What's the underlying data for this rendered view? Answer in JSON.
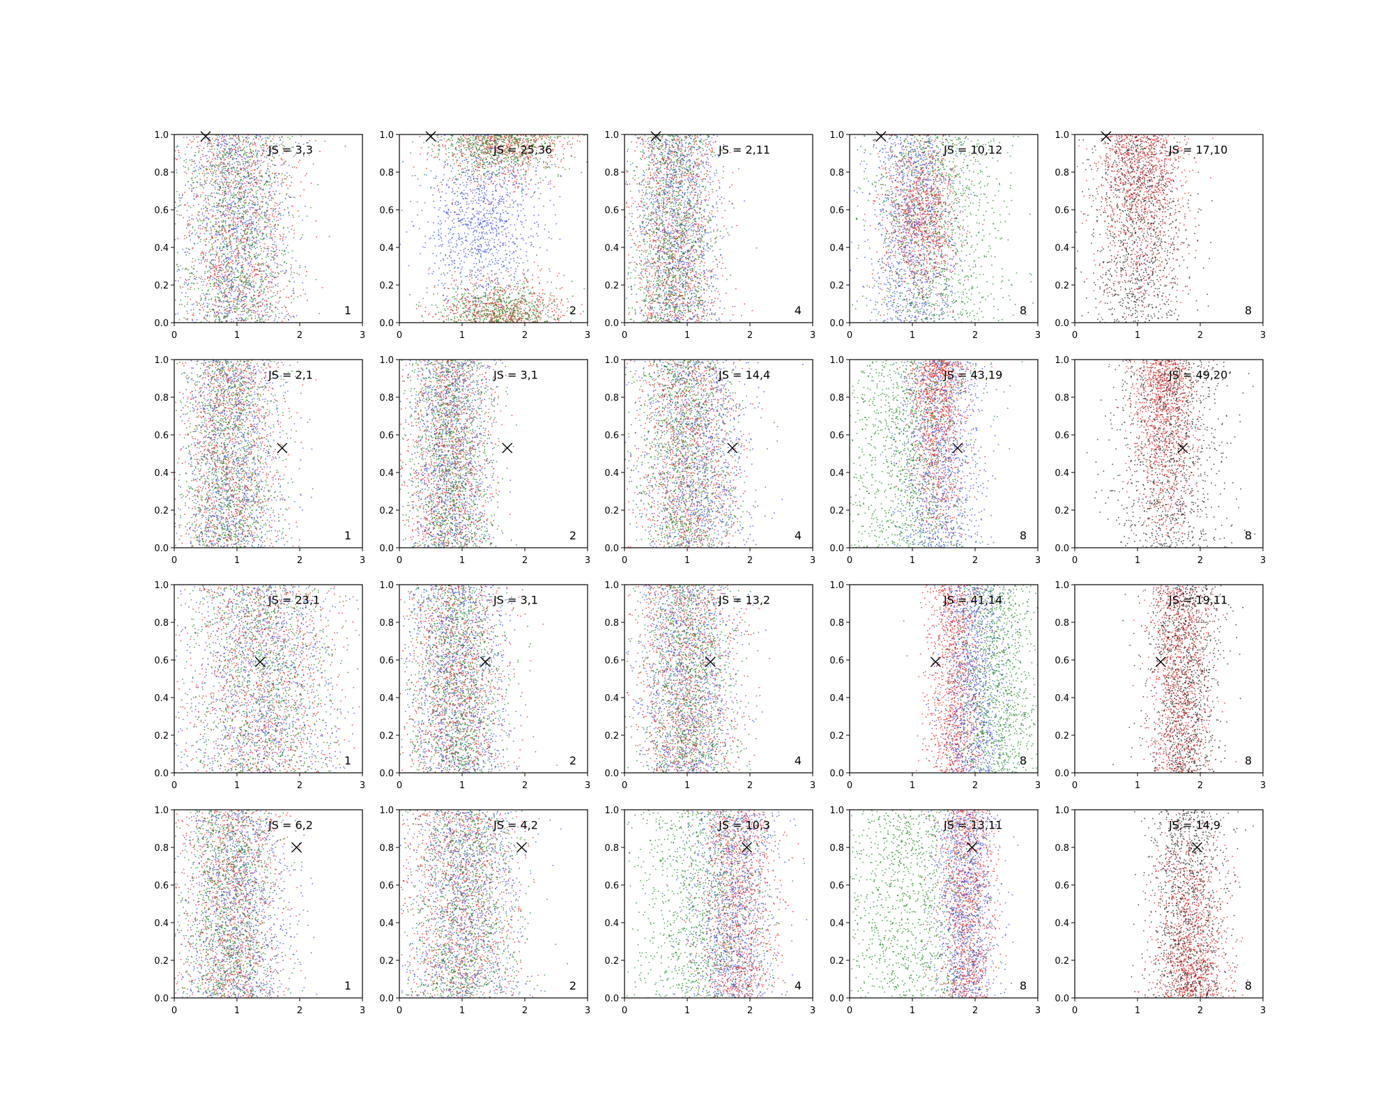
{
  "chart_data": {
    "type": "scatter",
    "layout": {
      "rows": 4,
      "cols": 5
    },
    "xlim": [
      0,
      3
    ],
    "ylim": [
      0,
      1
    ],
    "xticks": [
      "0",
      "1",
      "2",
      "3"
    ],
    "yticks": [
      "0.0",
      "0.2",
      "0.4",
      "0.6",
      "0.8",
      "1.0"
    ],
    "grid": false,
    "marker": {
      "symbol": "x",
      "color": "#000000"
    },
    "colors": {
      "red": "#e8231f",
      "blue": "#3a4fe0",
      "green": "#1f8a1f",
      "black": "#222222"
    },
    "panels": [
      {
        "label": "JS = 3,3",
        "count": "1",
        "marker": [
          0.5,
          0.99
        ],
        "clusters": [
          {
            "color": "red",
            "mx": 1.0,
            "sx": 0.45,
            "yMode": "uniform"
          },
          {
            "color": "blue",
            "mx": 1.0,
            "sx": 0.45,
            "yMode": "uniform"
          },
          {
            "color": "green",
            "mx": 1.0,
            "sx": 0.45,
            "yMode": "uniform"
          }
        ]
      },
      {
        "label": "JS = 25,36",
        "count": "2",
        "marker": [
          0.5,
          0.99
        ],
        "clusters": [
          {
            "color": "red",
            "mx": 1.6,
            "sx": 0.5,
            "yMode": "ends"
          },
          {
            "color": "blue",
            "mx": 1.3,
            "sx": 0.45,
            "yMode": "mid"
          },
          {
            "color": "green",
            "mx": 1.6,
            "sx": 0.5,
            "yMode": "ends"
          }
        ]
      },
      {
        "label": "JS = 2,11",
        "count": "4",
        "marker": [
          0.5,
          0.99
        ],
        "clusters": [
          {
            "color": "red",
            "mx": 0.8,
            "sx": 0.35,
            "yMode": "uniform"
          },
          {
            "color": "blue",
            "mx": 0.85,
            "sx": 0.35,
            "yMode": "uniform"
          },
          {
            "color": "green",
            "mx": 0.75,
            "sx": 0.35,
            "yMode": "uniform"
          }
        ]
      },
      {
        "label": "JS = 10,12",
        "count": "8",
        "marker": [
          0.5,
          0.99
        ],
        "clusters": [
          {
            "color": "red",
            "mx": 1.1,
            "sx": 0.3,
            "yMode": "mid"
          },
          {
            "color": "blue",
            "mx": 1.0,
            "sx": 0.35,
            "yMode": "uniform"
          },
          {
            "color": "green",
            "mx": 1.4,
            "sx": 0.55,
            "yMode": "uniform"
          }
        ]
      },
      {
        "label": "JS = 17,10",
        "count": "8",
        "marker": [
          0.5,
          0.99
        ],
        "clusters": [
          {
            "color": "red",
            "mx": 1.05,
            "sx": 0.35,
            "yMode": "top"
          },
          {
            "color": "black",
            "mx": 1.0,
            "sx": 0.4,
            "yMode": "uniform"
          }
        ]
      },
      {
        "label": "JS = 2,1",
        "count": "1",
        "marker": [
          1.72,
          0.53
        ],
        "clusters": [
          {
            "color": "red",
            "mx": 0.9,
            "sx": 0.4,
            "yMode": "uniform"
          },
          {
            "color": "blue",
            "mx": 0.9,
            "sx": 0.4,
            "yMode": "uniform"
          },
          {
            "color": "green",
            "mx": 0.9,
            "sx": 0.4,
            "yMode": "uniform"
          }
        ]
      },
      {
        "label": "JS = 3,1",
        "count": "2",
        "marker": [
          1.72,
          0.53
        ],
        "clusters": [
          {
            "color": "red",
            "mx": 0.8,
            "sx": 0.35,
            "yMode": "uniform"
          },
          {
            "color": "blue",
            "mx": 0.8,
            "sx": 0.35,
            "yMode": "uniform"
          },
          {
            "color": "green",
            "mx": 0.8,
            "sx": 0.35,
            "yMode": "uniform"
          }
        ]
      },
      {
        "label": "JS = 14,4",
        "count": "4",
        "marker": [
          1.72,
          0.53
        ],
        "clusters": [
          {
            "color": "red",
            "mx": 1.0,
            "sx": 0.4,
            "yMode": "uniform"
          },
          {
            "color": "blue",
            "mx": 1.15,
            "sx": 0.45,
            "yMode": "uniform"
          },
          {
            "color": "green",
            "mx": 0.95,
            "sx": 0.4,
            "yMode": "uniform"
          }
        ]
      },
      {
        "label": "JS = 43,19",
        "count": "8",
        "marker": [
          1.72,
          0.53
        ],
        "clusters": [
          {
            "color": "red",
            "mx": 1.4,
            "sx": 0.22,
            "yMode": "top"
          },
          {
            "color": "blue",
            "mx": 1.45,
            "sx": 0.35,
            "yMode": "uniform"
          },
          {
            "color": "green",
            "mx": 0.9,
            "sx": 0.5,
            "yMode": "uniform"
          }
        ]
      },
      {
        "label": "JS = 49,20",
        "count": "8",
        "marker": [
          1.72,
          0.53
        ],
        "clusters": [
          {
            "color": "red",
            "mx": 1.4,
            "sx": 0.25,
            "yMode": "top"
          },
          {
            "color": "black",
            "mx": 1.5,
            "sx": 0.45,
            "yMode": "uniform"
          }
        ]
      },
      {
        "label": "JS = 23,1",
        "count": "1",
        "marker": [
          1.37,
          0.59
        ],
        "clusters": [
          {
            "color": "red",
            "mx": 1.4,
            "sx": 0.6,
            "yMode": "uniform"
          },
          {
            "color": "blue",
            "mx": 1.4,
            "sx": 0.6,
            "yMode": "uniform"
          },
          {
            "color": "green",
            "mx": 1.4,
            "sx": 0.6,
            "yMode": "uniform"
          }
        ]
      },
      {
        "label": "JS = 3,1",
        "count": "2",
        "marker": [
          1.37,
          0.59
        ],
        "clusters": [
          {
            "color": "red",
            "mx": 0.9,
            "sx": 0.4,
            "yMode": "uniform"
          },
          {
            "color": "blue",
            "mx": 0.9,
            "sx": 0.4,
            "yMode": "uniform"
          },
          {
            "color": "green",
            "mx": 0.9,
            "sx": 0.4,
            "yMode": "uniform"
          }
        ]
      },
      {
        "label": "JS = 13,2",
        "count": "4",
        "marker": [
          1.37,
          0.59
        ],
        "clusters": [
          {
            "color": "red",
            "mx": 1.0,
            "sx": 0.4,
            "yMode": "uniform"
          },
          {
            "color": "blue",
            "mx": 1.0,
            "sx": 0.4,
            "yMode": "uniform"
          },
          {
            "color": "green",
            "mx": 1.0,
            "sx": 0.4,
            "yMode": "uniform"
          }
        ]
      },
      {
        "label": "JS = 41,14",
        "count": "8",
        "marker": [
          1.37,
          0.59
        ],
        "clusters": [
          {
            "color": "red",
            "mx": 1.65,
            "sx": 0.22,
            "yMode": "uniform"
          },
          {
            "color": "blue",
            "mx": 1.95,
            "sx": 0.25,
            "yMode": "uniform"
          },
          {
            "color": "green",
            "mx": 2.35,
            "sx": 0.35,
            "yMode": "uniform"
          }
        ]
      },
      {
        "label": "JS = 19,11",
        "count": "8",
        "marker": [
          1.37,
          0.59
        ],
        "clusters": [
          {
            "color": "red",
            "mx": 1.65,
            "sx": 0.25,
            "yMode": "uniform"
          },
          {
            "color": "black",
            "mx": 1.75,
            "sx": 0.3,
            "yMode": "uniform"
          }
        ]
      },
      {
        "label": "JS = 6,2",
        "count": "1",
        "marker": [
          1.95,
          0.8
        ],
        "clusters": [
          {
            "color": "red",
            "mx": 0.9,
            "sx": 0.4,
            "yMode": "uniform"
          },
          {
            "color": "blue",
            "mx": 1.0,
            "sx": 0.45,
            "yMode": "uniform"
          },
          {
            "color": "green",
            "mx": 0.85,
            "sx": 0.4,
            "yMode": "uniform"
          }
        ]
      },
      {
        "label": "JS = 4,2",
        "count": "2",
        "marker": [
          1.95,
          0.8
        ],
        "clusters": [
          {
            "color": "red",
            "mx": 1.0,
            "sx": 0.45,
            "yMode": "uniform"
          },
          {
            "color": "blue",
            "mx": 1.0,
            "sx": 0.45,
            "yMode": "uniform"
          },
          {
            "color": "green",
            "mx": 1.0,
            "sx": 0.45,
            "yMode": "uniform"
          }
        ]
      },
      {
        "label": "JS = 10,3",
        "count": "4",
        "marker": [
          1.95,
          0.8
        ],
        "clusters": [
          {
            "color": "red",
            "mx": 1.8,
            "sx": 0.3,
            "yMode": "uniform"
          },
          {
            "color": "blue",
            "mx": 1.7,
            "sx": 0.35,
            "yMode": "uniform"
          },
          {
            "color": "green",
            "mx": 1.2,
            "sx": 0.55,
            "yMode": "uniform"
          }
        ]
      },
      {
        "label": "JS = 13,11",
        "count": "8",
        "marker": [
          1.95,
          0.8
        ],
        "clusters": [
          {
            "color": "red",
            "mx": 1.85,
            "sx": 0.22,
            "yMode": "uniform"
          },
          {
            "color": "blue",
            "mx": 1.85,
            "sx": 0.25,
            "yMode": "uniform"
          },
          {
            "color": "green",
            "mx": 0.9,
            "sx": 0.5,
            "yMode": "uniform"
          }
        ]
      },
      {
        "label": "JS = 14,9",
        "count": "8",
        "marker": [
          1.95,
          0.8
        ],
        "clusters": [
          {
            "color": "red",
            "mx": 1.85,
            "sx": 0.28,
            "yMode": "bottom"
          },
          {
            "color": "black",
            "mx": 1.8,
            "sx": 0.32,
            "yMode": "uniform"
          }
        ]
      }
    ]
  }
}
